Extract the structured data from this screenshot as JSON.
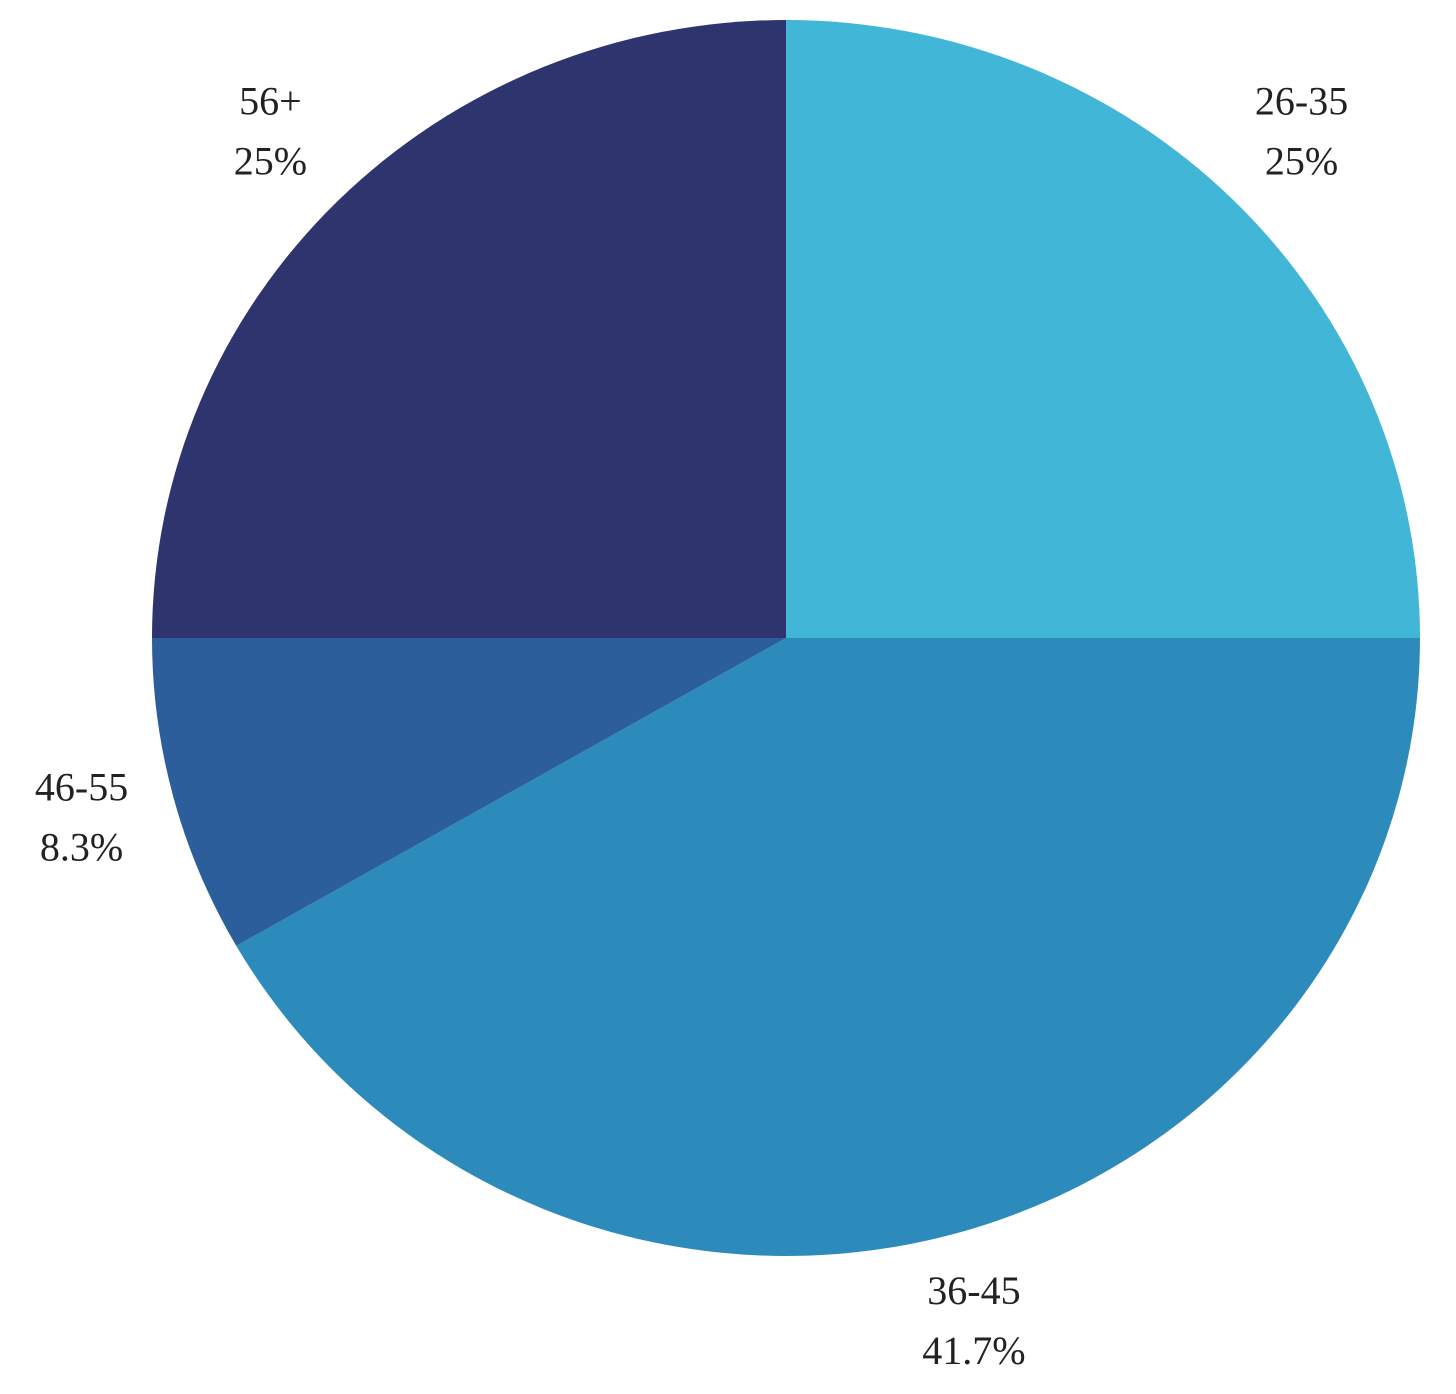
{
  "chart_data": {
    "type": "pie",
    "categories": [
      "26-35",
      "36-45",
      "46-55",
      "56+"
    ],
    "values": [
      25,
      41.7,
      8.3,
      25
    ],
    "value_labels": [
      "25%",
      "41.7%",
      "8.3%",
      "25%"
    ],
    "colors": [
      "#41b6d6",
      "#2d8bbc",
      "#2b5e9b",
      "#2e346e"
    ]
  }
}
